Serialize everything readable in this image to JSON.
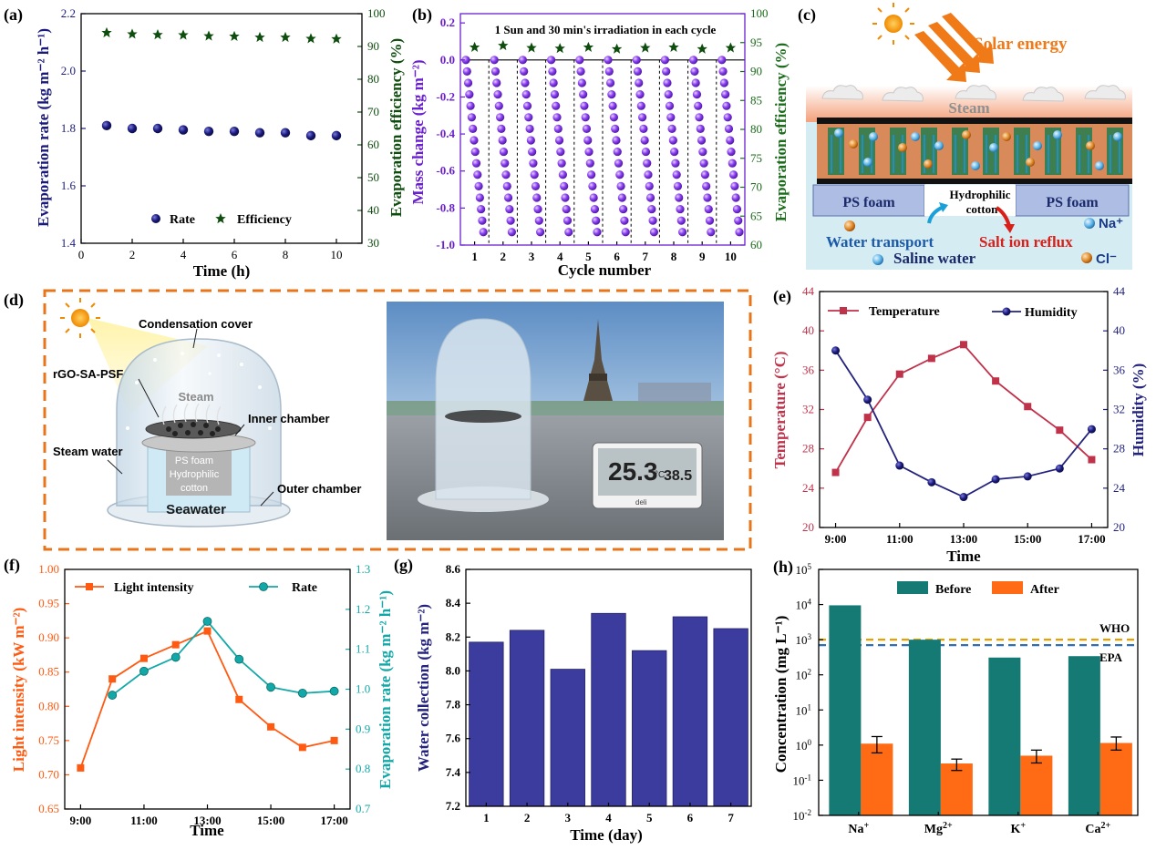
{
  "colors": {
    "navy": "#1a1a7e",
    "green": "#0f4d0f",
    "purple": "#6a1fd0",
    "darkgreen": "#1a6b1a",
    "crimson": "#c0314a",
    "navy2": "#23237e",
    "orange": "#ff5a12",
    "teal": "#13a8a8",
    "bar_g": "#3c3c9e",
    "teal_dark": "#157a74",
    "orange_bar": "#ff6a14",
    "who": "#e8a000",
    "epa": "#2f6fb3",
    "dash_orange": "#e8751a"
  },
  "panels": {
    "a": "(a)",
    "b": "(b)",
    "c": "(c)",
    "d": "(d)",
    "e": "(e)",
    "f": "(f)",
    "g": "(g)",
    "h": "(h)"
  },
  "c_diagram": {
    "solar": "Solar energy",
    "steam": "Steam",
    "ps_left": "PS foam",
    "ps_right": "PS foam",
    "hydro1": "Hydrophilic",
    "hydro2": "cotton",
    "na": "Na⁺",
    "cl": "Cl⁻",
    "water_transport": "Water transport",
    "salt_reflux": "Salt ion reflux",
    "saline": "Saline water"
  },
  "d_diagram": {
    "condensation": "Condensation cover",
    "rgo": "rGO-SA-PSF",
    "steam": "Steam",
    "inner": "Inner chamber",
    "steam_water": "Steam water",
    "ps": "PS foam",
    "hydro1": "Hydrophilic",
    "hydro2": "cotton",
    "seawater": "Seawater",
    "outer": "Outer chamber",
    "temp_read": "25.3",
    "temp_unit": "°C",
    "hum_read": "38.5",
    "brand": "deli"
  },
  "chart_data": [
    {
      "panel": "a",
      "type": "scatter",
      "xlabel": "Time (h)",
      "ylabel": "Evaporation rate (kg m⁻² h⁻¹)",
      "y2label": "Evaporation efficiency (%)",
      "xlim": [
        0,
        11
      ],
      "ylim": [
        1.4,
        2.2
      ],
      "y2lim": [
        30,
        100
      ],
      "xticks": [
        0,
        2,
        4,
        6,
        8,
        10
      ],
      "yticks": [
        1.4,
        1.6,
        1.8,
        2.0,
        2.2
      ],
      "y2ticks": [
        30,
        40,
        50,
        60,
        70,
        80,
        90,
        100
      ],
      "x": [
        1,
        2,
        3,
        4,
        5,
        6,
        7,
        8,
        9,
        10
      ],
      "series": [
        {
          "name": "Rate",
          "axis": "left",
          "values": [
            1.81,
            1.8,
            1.8,
            1.795,
            1.79,
            1.79,
            1.785,
            1.785,
            1.775,
            1.775
          ]
        },
        {
          "name": "Efficiency",
          "axis": "right",
          "values": [
            94.2,
            93.8,
            93.6,
            93.5,
            93.2,
            93.1,
            92.8,
            92.8,
            92.4,
            92.3
          ]
        }
      ]
    },
    {
      "panel": "b",
      "type": "scatter",
      "title": "1 Sun and 30 min's irradiation in each cycle",
      "xlabel": "Cycle number",
      "ylabel": "Mass change (kg m⁻²)",
      "y2label": "Evaporation efficiency (%)",
      "ylim": [
        -1.0,
        0.25
      ],
      "y2lim": [
        60,
        100
      ],
      "xticks": [
        "1",
        "2",
        "3",
        "4",
        "5",
        "6",
        "7",
        "8",
        "9",
        "10"
      ],
      "yticks": [
        "-1.0",
        "-0.8",
        "-0.6",
        "-0.4",
        "-0.2",
        "0.0",
        "0.2"
      ],
      "y2ticks": [
        60,
        65,
        70,
        75,
        80,
        85,
        90,
        95,
        100
      ],
      "cycle_start_mass": 0.0,
      "cycle_end_mass": -0.93,
      "points_per_cycle": 16,
      "efficiency": [
        94.2,
        94.5,
        94.1,
        94.0,
        94.2,
        93.9,
        94.1,
        94.2,
        93.9,
        94.1
      ]
    },
    {
      "panel": "e",
      "type": "line",
      "xlabel": "Time",
      "ylabel": "Temperature (°C)",
      "y2label": "Humidity (%)",
      "ylim": [
        20,
        44
      ],
      "y2lim": [
        20,
        44
      ],
      "yticks": [
        20,
        24,
        28,
        32,
        36,
        40,
        44
      ],
      "y2ticks": [
        20,
        24,
        28,
        32,
        36,
        40,
        44
      ],
      "xticks": [
        "9:00",
        "11:00",
        "13:00",
        "15:00",
        "17:00"
      ],
      "x": [
        9,
        10,
        11,
        12,
        13,
        14,
        15,
        16,
        17
      ],
      "series": [
        {
          "name": "Temperature",
          "axis": "left",
          "values": [
            25.6,
            31.2,
            35.6,
            37.2,
            38.6,
            34.9,
            32.3,
            29.9,
            26.9
          ]
        },
        {
          "name": "Humidity",
          "axis": "right",
          "values": [
            38.0,
            33.0,
            26.3,
            24.6,
            23.1,
            24.9,
            25.2,
            26.0,
            30.0
          ]
        }
      ]
    },
    {
      "panel": "f",
      "type": "line",
      "xlabel": "Time",
      "ylabel": "Light intensity (kW m⁻²)",
      "y2label": "Evaporation rate (kg m⁻² h⁻¹)",
      "ylim": [
        0.65,
        1.0
      ],
      "y2lim": [
        0.7,
        1.3
      ],
      "yticks": [
        "0.65",
        "0.70",
        "0.75",
        "0.80",
        "0.85",
        "0.90",
        "0.95",
        "1.00"
      ],
      "y2ticks": [
        "0.7",
        "0.8",
        "0.9",
        "1.0",
        "1.1",
        "1.2",
        "1.3"
      ],
      "xticks": [
        "9:00",
        "11:00",
        "13:00",
        "15:00",
        "17:00"
      ],
      "series": [
        {
          "name": "Light intensity",
          "axis": "left",
          "x": [
            9,
            10,
            11,
            12,
            13,
            14,
            15,
            16,
            17
          ],
          "values": [
            0.71,
            0.84,
            0.87,
            0.89,
            0.91,
            0.81,
            0.77,
            0.74,
            0.75
          ]
        },
        {
          "name": "Rate",
          "axis": "right",
          "x": [
            10,
            11,
            12,
            13,
            14,
            15,
            16,
            17
          ],
          "values": [
            0.985,
            1.045,
            1.08,
            1.17,
            1.075,
            1.005,
            0.99,
            0.995
          ]
        }
      ]
    },
    {
      "panel": "g",
      "type": "bar",
      "xlabel": "Time (day)",
      "ylabel": "Water collection (kg m⁻²)",
      "ylim": [
        7.2,
        8.6
      ],
      "yticks": [
        "7.2",
        "7.4",
        "7.6",
        "7.8",
        "8.0",
        "8.2",
        "8.4",
        "8.6"
      ],
      "categories": [
        "1",
        "2",
        "3",
        "4",
        "5",
        "6",
        "7"
      ],
      "values": [
        8.17,
        8.24,
        8.01,
        8.34,
        8.12,
        8.32,
        8.25
      ]
    },
    {
      "panel": "h",
      "type": "bar",
      "scale": "log",
      "ylabel": "Concentration (mg L⁻¹)",
      "ylim_log": [
        -2,
        5
      ],
      "ytick_exps": [
        "-2",
        "-1",
        "0",
        "1",
        "2",
        "3",
        "4",
        "5"
      ],
      "categories": [
        {
          "base": "Na",
          "sup": "+"
        },
        {
          "base": "Mg",
          "sup": "2+"
        },
        {
          "base": "K",
          "sup": "+"
        },
        {
          "base": "Ca",
          "sup": "2+"
        }
      ],
      "series": [
        {
          "name": "Before",
          "values": [
            9500,
            1000,
            310,
            340
          ]
        },
        {
          "name": "After",
          "values": [
            1.1,
            0.3,
            0.5,
            1.15
          ],
          "err_low": [
            0.6,
            0.19,
            0.31,
            0.72
          ],
          "err_high": [
            1.75,
            0.4,
            0.72,
            1.7
          ]
        }
      ],
      "lines": [
        {
          "name": "WHO",
          "value": 1000
        },
        {
          "name": "EPA",
          "value": 700
        }
      ]
    }
  ]
}
